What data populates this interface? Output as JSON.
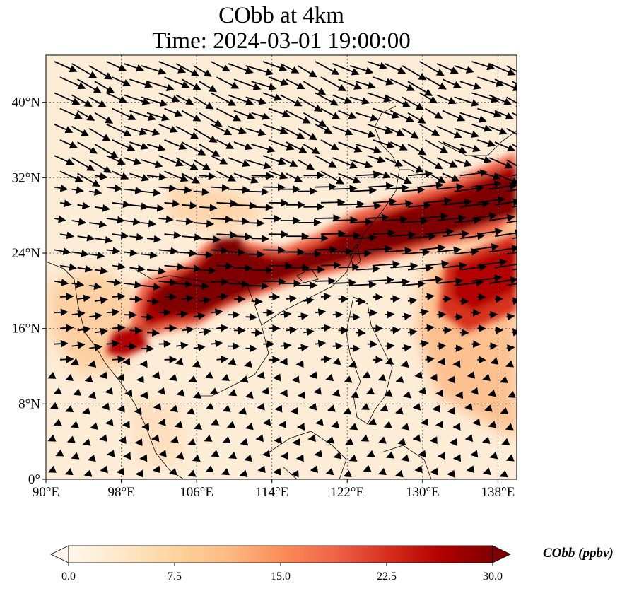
{
  "chart_data": {
    "type": "heatmap",
    "title_line1": "CObb at 4km",
    "title_line2": "Time: 2024-03-01 19:00:00",
    "xlim": [
      90,
      140
    ],
    "ylim": [
      0,
      45
    ],
    "x_ticks": [
      {
        "value": 90,
        "label": "90°E"
      },
      {
        "value": 98,
        "label": "98°E"
      },
      {
        "value": 106,
        "label": "106°E"
      },
      {
        "value": 114,
        "label": "114°E"
      },
      {
        "value": 122,
        "label": "122°E"
      },
      {
        "value": 130,
        "label": "130°E"
      },
      {
        "value": 138,
        "label": "138°E"
      }
    ],
    "y_ticks": [
      {
        "value": 0,
        "label": "0°"
      },
      {
        "value": 8,
        "label": "8°N"
      },
      {
        "value": 16,
        "label": "16°N"
      },
      {
        "value": 24,
        "label": "24°N"
      },
      {
        "value": 32,
        "label": "32°N"
      },
      {
        "value": 40,
        "label": "40°N"
      }
    ],
    "grid": true,
    "colorbar": {
      "label": "CObb (ppbv)",
      "min": 0.0,
      "max": 30.0,
      "ticks": [
        "0.0",
        "7.5",
        "15.0",
        "22.5",
        "30.0"
      ],
      "colormap": [
        "#fff7ec",
        "#fee8c8",
        "#fdd49e",
        "#fdbb84",
        "#fc8d59",
        "#ef6548",
        "#d7301f",
        "#b30000",
        "#7f0000"
      ],
      "extend": "both"
    },
    "plumes": [
      {
        "lon_from": 100,
        "lat_from": 16,
        "lon_to": 140,
        "lat_to": 30,
        "value": 30
      },
      {
        "lon_from": 103,
        "lat_from": 20,
        "lon_to": 110,
        "lat_to": 25,
        "value": 30
      },
      {
        "lon_from": 134,
        "lat_from": 17,
        "lon_to": 140,
        "lat_to": 33,
        "value": 25
      },
      {
        "lon_from": 97,
        "lat_from": 14,
        "lon_to": 103,
        "lat_to": 17,
        "value": 22
      }
    ]
  }
}
